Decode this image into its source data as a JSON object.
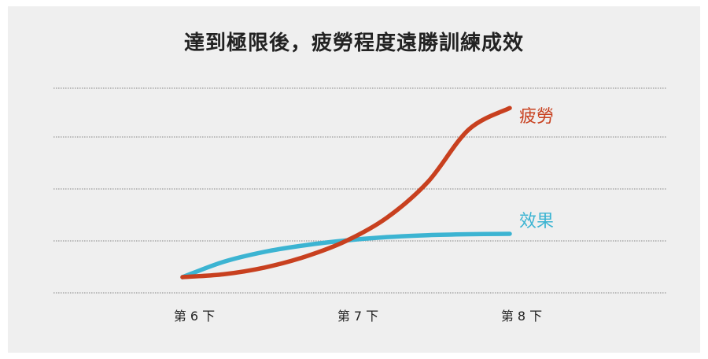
{
  "chart_data": {
    "type": "line",
    "title": "達到極限後，疲勞程度遠勝訓練成效",
    "xlabel": "",
    "ylabel": "",
    "categories": [
      "第 6 下",
      "第 7 下",
      "第 8 下"
    ],
    "x": [
      6,
      6.25,
      6.5,
      6.75,
      7,
      7.25,
      7.5,
      7.75,
      8
    ],
    "xlim": [
      6,
      8
    ],
    "ylim": [
      0,
      4
    ],
    "grid": true,
    "series": [
      {
        "name": "疲勞",
        "color": "#c8401f",
        "values": [
          0,
          0.06,
          0.2,
          0.43,
          0.76,
          1.25,
          2.0,
          3.1,
          3.55
        ]
      },
      {
        "name": "效果",
        "color": "#3cb4d2",
        "values": [
          0,
          0.32,
          0.53,
          0.67,
          0.77,
          0.84,
          0.88,
          0.9,
          0.91
        ]
      }
    ]
  }
}
